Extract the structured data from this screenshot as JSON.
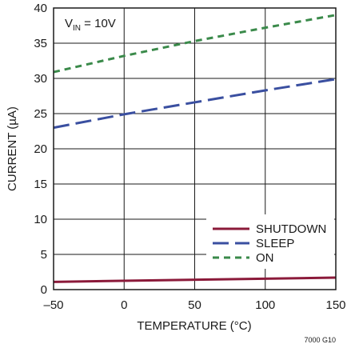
{
  "chart_data": {
    "type": "line",
    "xlabel": "TEMPERATURE (°C)",
    "ylabel": "CURRENT (µA)",
    "xlim": [
      -50,
      150
    ],
    "ylim": [
      0,
      40
    ],
    "x_ticks": [
      -50,
      0,
      50,
      100,
      150
    ],
    "y_ticks": [
      0,
      5,
      10,
      15,
      20,
      25,
      30,
      35,
      40
    ],
    "x_tick_labels": [
      "–50",
      "0",
      "50",
      "100",
      "150"
    ],
    "y_tick_labels": [
      "0",
      "5",
      "10",
      "15",
      "20",
      "25",
      "30",
      "35",
      "40"
    ],
    "grid": true,
    "legend_position": "bottom-right",
    "annotation": {
      "main": "V",
      "sub": "IN",
      "rest": " = 10V"
    },
    "figure_code": "7000 G10",
    "series": [
      {
        "name": "SHUTDOWN",
        "color": "#8b1a3a",
        "dash": "solid",
        "x": [
          -50,
          150
        ],
        "y": [
          1.1,
          1.7
        ]
      },
      {
        "name": "SLEEP",
        "color": "#3a4fa0",
        "dash": "long-dash",
        "x": [
          -50,
          0,
          50,
          100,
          150
        ],
        "y": [
          23.0,
          24.9,
          26.6,
          28.3,
          29.9
        ]
      },
      {
        "name": "ON",
        "color": "#3a8a4a",
        "dash": "short-dash",
        "x": [
          -50,
          0,
          50,
          100,
          150
        ],
        "y": [
          30.9,
          33.2,
          35.3,
          37.2,
          39.0
        ]
      }
    ]
  }
}
